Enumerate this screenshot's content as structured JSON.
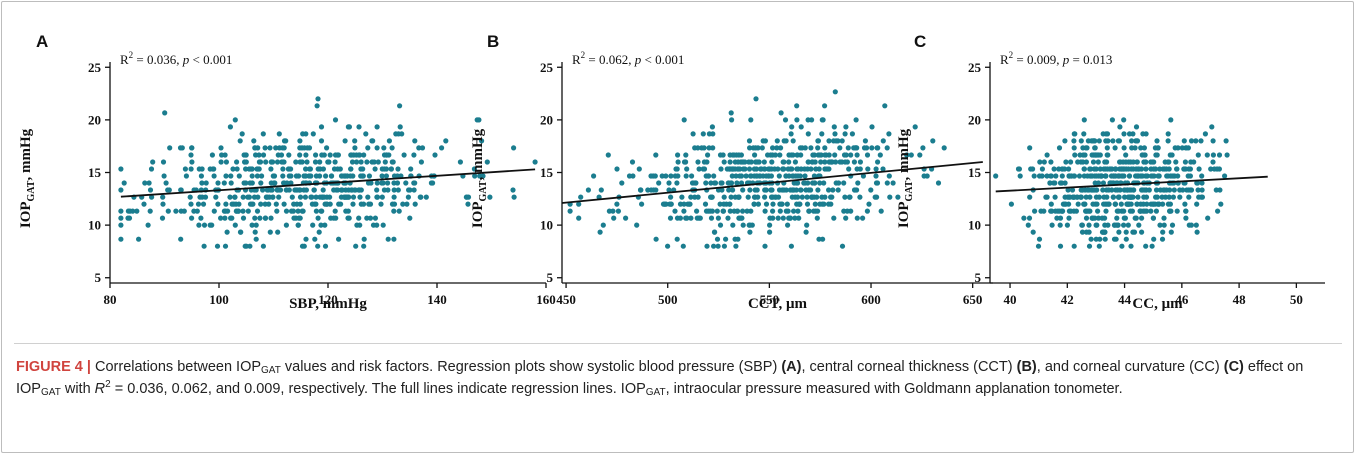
{
  "accent_color": "#1b7d8f",
  "chart_data": [
    {
      "type": "scatter",
      "panel": "A",
      "annotation": "R² = 0.036, p < 0.001",
      "annotation_parts": {
        "r2": "R",
        "sup": "2",
        "mid": " = 0.036, ",
        "p": "p",
        "rest": " < 0.001"
      },
      "xlabel": "SBP, mmHg",
      "ylabel_main": "IOP",
      "ylabel_sub": "GAT",
      "ylabel_rest": ", mmHg",
      "xlim": [
        80,
        160
      ],
      "ylim": [
        4.5,
        25.5
      ],
      "xticks": [
        80,
        100,
        120,
        140,
        160
      ],
      "yticks": [
        5,
        10,
        15,
        20,
        25
      ],
      "grid": false,
      "point_color": "#1b7d8f",
      "regression": {
        "x": [
          82,
          158
        ],
        "y": [
          12.7,
          15.3
        ]
      },
      "generator": {
        "seed": 11,
        "n": 600,
        "xmean": 115,
        "xsd": 14,
        "xmin": 82,
        "xmax": 158,
        "ymean": 14,
        "ysd": 2.6,
        "ymin": 8,
        "ymax": 24,
        "slope": 0.034
      }
    },
    {
      "type": "scatter",
      "panel": "B",
      "annotation": "R² = 0.062, p < 0.001",
      "annotation_parts": {
        "r2": "R",
        "sup": "2",
        "mid": " = 0.062, ",
        "p": "p",
        "rest": " < 0.001"
      },
      "xlabel": "CCT, μm",
      "ylabel_main": "IOP",
      "ylabel_sub": "GAT",
      "ylabel_rest": ", mmHg",
      "xlim": [
        448,
        660
      ],
      "ylim": [
        4.5,
        25.5
      ],
      "xticks": [
        450,
        500,
        550,
        600,
        650
      ],
      "yticks": [
        5,
        10,
        15,
        20,
        25
      ],
      "grid": false,
      "point_color": "#1b7d8f",
      "regression": {
        "x": [
          448,
          655
        ],
        "y": [
          12.1,
          16.0
        ]
      },
      "generator": {
        "seed": 23,
        "n": 600,
        "xmean": 545,
        "xsd": 35,
        "xmin": 452,
        "xmax": 652,
        "ymean": 14,
        "ysd": 2.6,
        "ymin": 8,
        "ymax": 24,
        "slope": 0.019
      }
    },
    {
      "type": "scatter",
      "panel": "C",
      "annotation": "R² = 0.009, p = 0.013",
      "annotation_parts": {
        "r2": "R",
        "sup": "2",
        "mid": " = 0.009, ",
        "p": "p",
        "rest": " = 0.013"
      },
      "xlabel": "CC, μm",
      "ylabel_main": "IOP",
      "ylabel_sub": "GAT",
      "ylabel_rest": ", mmHg",
      "xlim": [
        39.3,
        51
      ],
      "ylim": [
        4.5,
        25.5
      ],
      "xticks": [
        40,
        42,
        44,
        46,
        48,
        50
      ],
      "yticks": [
        5,
        10,
        15,
        20,
        25
      ],
      "grid": false,
      "point_color": "#1b7d8f",
      "regression": {
        "x": [
          39.5,
          49
        ],
        "y": [
          13.2,
          14.6
        ]
      },
      "generator": {
        "seed": 37,
        "n": 600,
        "xmean": 43.9,
        "xsd": 1.5,
        "xmin": 39.5,
        "xmax": 49.1,
        "ymean": 14,
        "ysd": 2.6,
        "ymin": 8,
        "ymax": 24,
        "slope": 0.15
      }
    }
  ],
  "caption": {
    "figure_label": "FIGURE 4 |",
    "t1": " Correlations between IOP",
    "sub1": "GAT",
    "t2": " values and risk factors. Regression plots show systolic blood pressure (SBP) ",
    "refA": "(A)",
    "t3": ", central corneal thickness (CCT) ",
    "refB": "(B)",
    "t4": ", and corneal curvature (CC) ",
    "refC": "(C)",
    "t5": " effect on IOP",
    "sub2": "GAT",
    "t6": " with ",
    "r2_r": "R",
    "r2_sup": "2",
    "t7": " = 0.036, 0.062, and 0.009, respectively. The full lines indicate regression lines. IOP",
    "sub3": "GAT",
    "t8": ", intraocular pressure measured with Goldmann applanation tonometer."
  }
}
